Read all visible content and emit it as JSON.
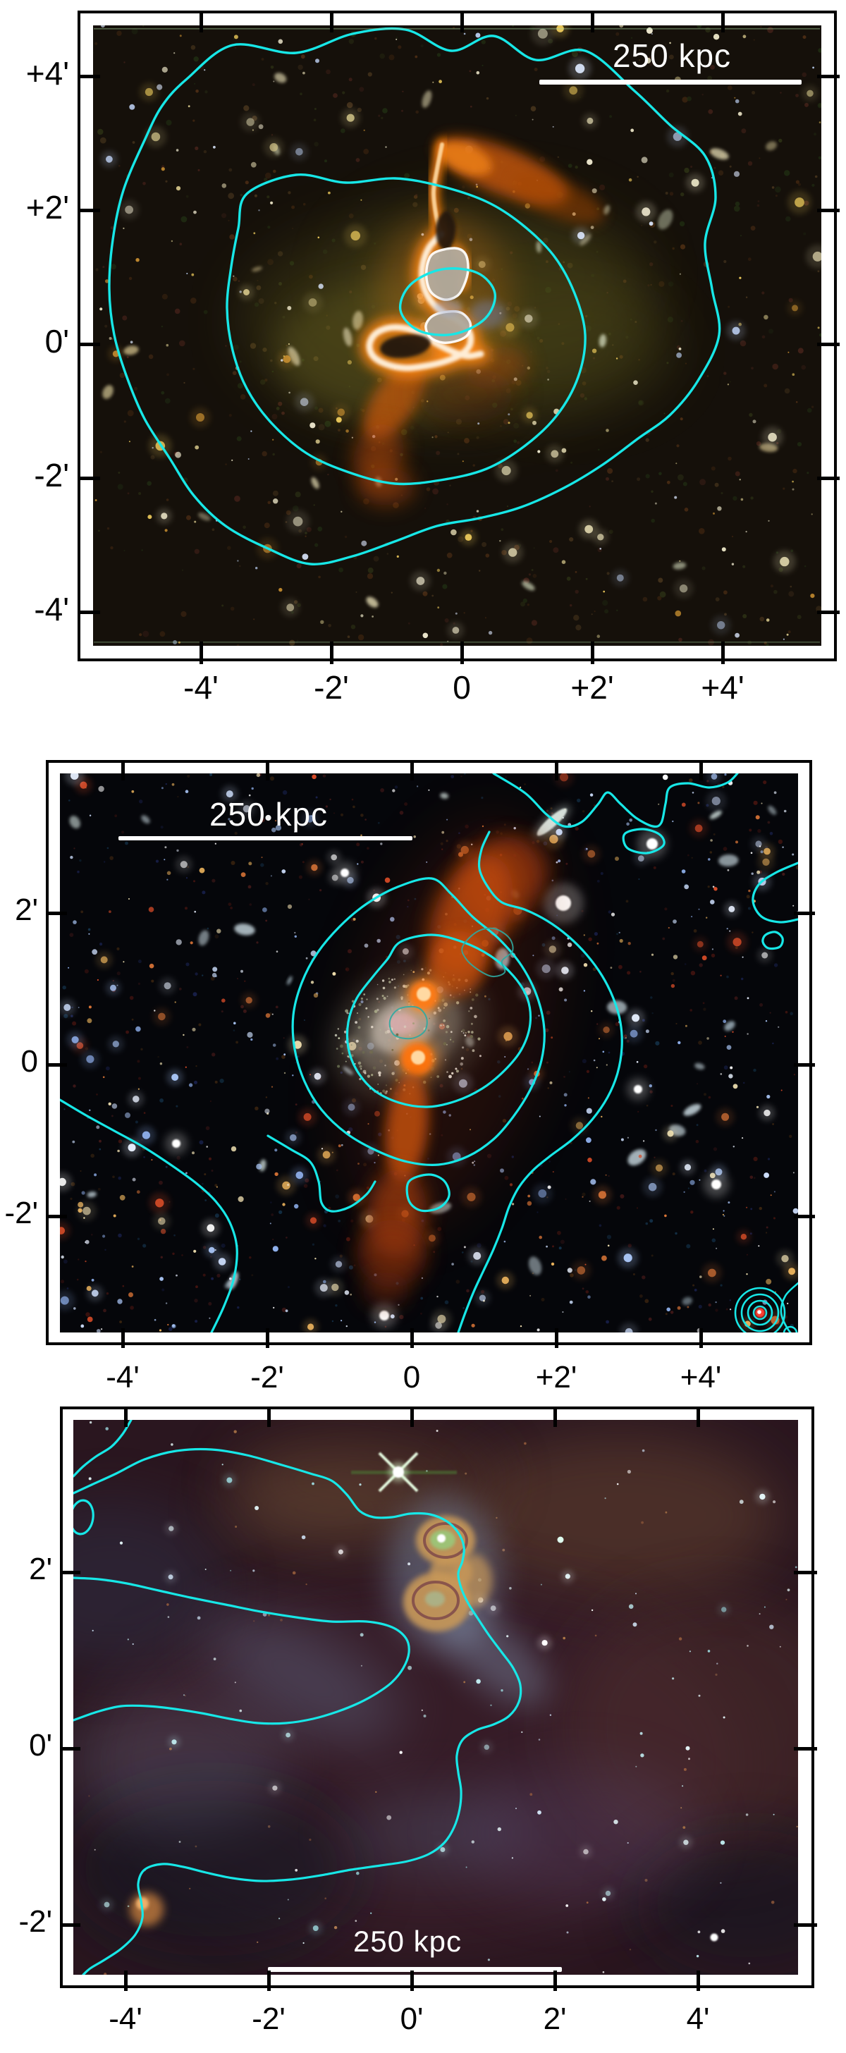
{
  "figure": {
    "type": "three-panel astronomical sky images with coordinate axes, radio emission overlays and cyan contours",
    "panel_count": 3
  },
  "colors": {
    "contour_cyan": "#17e7e7",
    "inner_contour_teal": "#2fa8a0",
    "radio_orange": "#e87413",
    "scalebar_white": "#ffffff",
    "axis_black": "#000000",
    "page_background": "#ffffff"
  },
  "panels": [
    {
      "id": "top",
      "scalebar_label": "250 kpc",
      "x_tick_labels": [
        "-4'",
        "-2'",
        "0",
        "+2'",
        "+4'"
      ],
      "y_tick_labels": [
        "+4'",
        "+2'",
        "0'",
        "-2'",
        "-4'"
      ]
    },
    {
      "id": "middle",
      "scalebar_label": "250 kpc",
      "x_tick_labels": [
        "-4'",
        "-2'",
        "0",
        "+2'",
        "+4'"
      ],
      "y_tick_labels": [
        "2'",
        "0",
        "-2'"
      ]
    },
    {
      "id": "bottom",
      "scalebar_label": "250 kpc",
      "x_tick_labels": [
        "-4'",
        "-2'",
        "0'",
        "2'",
        "4'"
      ],
      "y_tick_labels": [
        "2'",
        "0'",
        "-2'"
      ]
    }
  ]
}
